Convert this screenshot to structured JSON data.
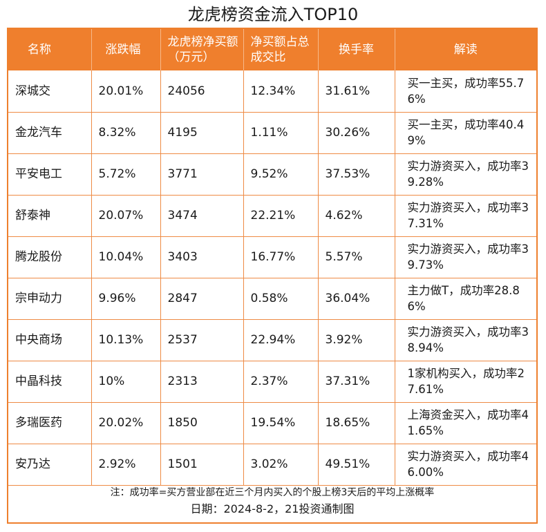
{
  "title": "龙虎榜资金流入TOP10",
  "colors": {
    "accent": "#ef7f2d",
    "header_text": "#ffffff"
  },
  "columns": [
    "名称",
    "涨跌幅",
    "龙虎榜净买额（万元）",
    "净买额占总成交比",
    "换手率",
    "解读"
  ],
  "rows": [
    [
      "深城交",
      "20.01%",
      "24056",
      "12.34%",
      "31.61%",
      "买一主买，成功率55.76%"
    ],
    [
      "金龙汽车",
      "8.32%",
      "4195",
      "1.11%",
      "30.26%",
      "买一主买，成功率40.49%"
    ],
    [
      "平安电工",
      "5.72%",
      "3771",
      "9.52%",
      "37.53%",
      "实力游资买入，成功率39.28%"
    ],
    [
      "舒泰神",
      "20.07%",
      "3474",
      "22.21%",
      "4.62%",
      "实力游资买入，成功率37.31%"
    ],
    [
      "腾龙股份",
      "10.04%",
      "3403",
      "16.77%",
      "5.57%",
      "实力游资买入，成功率39.73%"
    ],
    [
      "宗申动力",
      "9.96%",
      "2847",
      "0.58%",
      "36.04%",
      "主力做T，成功率28.86%"
    ],
    [
      "中央商场",
      "10.13%",
      "2537",
      "22.94%",
      "3.92%",
      "实力游资买入，成功率38.94%"
    ],
    [
      "中晶科技",
      "10%",
      "2313",
      "2.37%",
      "37.31%",
      "1家机构买入，成功率27.61%"
    ],
    [
      "多瑞医药",
      "20.02%",
      "1850",
      "19.54%",
      "18.65%",
      "上海资金买入，成功率41.65%"
    ],
    [
      "安乃达",
      "2.92%",
      "1501",
      "3.02%",
      "49.51%",
      "实力游资买入，成功率46.00%"
    ]
  ],
  "note": "注：成功率=买方营业部在近三个月内买入的个股上榜3天后的平均上涨概率",
  "date_line": "日期：2024-8-2，21投资通制图"
}
